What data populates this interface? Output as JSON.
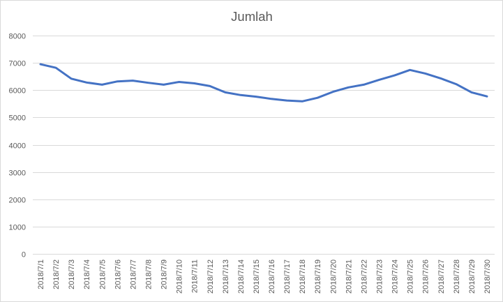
{
  "chart_data": {
    "type": "line",
    "title": "Jumlah",
    "xlabel": "",
    "ylabel": "",
    "ylim": [
      0,
      8000
    ],
    "yticks": [
      0,
      1000,
      2000,
      3000,
      4000,
      5000,
      6000,
      7000,
      8000
    ],
    "grid": true,
    "legend": "none",
    "x": [
      "2018/7/1",
      "2018/7/2",
      "2018/7/3",
      "2018/7/4",
      "2018/7/5",
      "2018/7/6",
      "2018/7/7",
      "2018/7/8",
      "2018/7/9",
      "2018/7/10",
      "2018/7/11",
      "2018/7/12",
      "2018/7/13",
      "2018/7/14",
      "2018/7/15",
      "2018/7/16",
      "2018/7/17",
      "2018/7/18",
      "2018/7/19",
      "2018/7/20",
      "2018/7/21",
      "2018/7/22",
      "2018/7/23",
      "2018/7/24",
      "2018/7/25",
      "2018/7/26",
      "2018/7/27",
      "2018/7/28",
      "2018/7/29",
      "2018/7/30"
    ],
    "series": [
      {
        "name": "Jumlah",
        "color": "#4472c4",
        "values": [
          6950,
          6820,
          6420,
          6280,
          6200,
          6320,
          6350,
          6270,
          6200,
          6300,
          6250,
          6150,
          5920,
          5820,
          5760,
          5680,
          5620,
          5590,
          5720,
          5940,
          6100,
          6200,
          6380,
          6540,
          6740,
          6610,
          6430,
          6220,
          5920,
          5770
        ]
      }
    ]
  },
  "colors": {
    "gridline": "#d9d9d9",
    "text": "#595959",
    "series": "#4472c4"
  }
}
